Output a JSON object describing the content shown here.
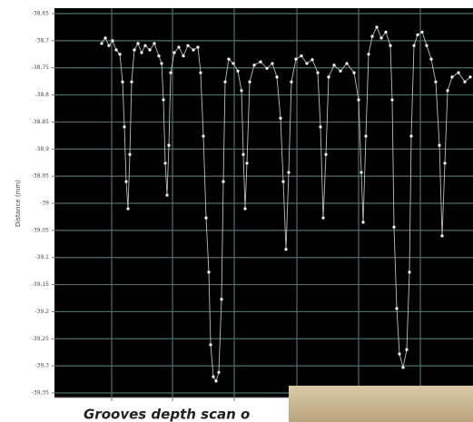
{
  "chart_data": {
    "type": "line",
    "title": "Grooves depth scan o",
    "y_label": "Distance (mm)",
    "xlim": [
      0,
      460
    ],
    "ylim": [
      -39.35,
      -38.65
    ],
    "yticks": [
      {
        "value": -38.65,
        "label": "-38,65"
      },
      {
        "value": -38.7,
        "label": "-38,7"
      },
      {
        "value": -38.75,
        "label": "-38,75"
      },
      {
        "value": -38.8,
        "label": "-38,8"
      },
      {
        "value": -38.85,
        "label": "-38,85"
      },
      {
        "value": -38.9,
        "label": "-38,9"
      },
      {
        "value": -38.95,
        "label": "-38,95"
      },
      {
        "value": -39,
        "label": "-39"
      },
      {
        "value": -39.05,
        "label": "-39,05"
      },
      {
        "value": -39.1,
        "label": "-39,1"
      },
      {
        "value": -39.15,
        "label": "-39,15"
      },
      {
        "value": -39.2,
        "label": "-39,2"
      },
      {
        "value": -39.25,
        "label": "-39,25"
      },
      {
        "value": -39.3,
        "label": "-39,3"
      },
      {
        "value": -39.35,
        "label": "-39,35"
      }
    ],
    "grid": true,
    "series": [
      {
        "color": "#ffffff",
        "x": [
          52,
          56,
          60,
          64,
          68,
          72,
          75,
          77,
          79,
          81,
          83,
          85,
          88,
          92,
          96,
          100,
          105,
          110,
          115,
          118,
          120,
          122,
          124,
          126,
          128,
          132,
          137,
          142,
          147,
          153,
          158,
          161,
          164,
          167,
          170,
          172,
          175,
          178,
          181,
          184,
          186,
          188,
          192,
          197,
          202,
          206,
          208,
          210,
          212,
          215,
          220,
          227,
          234,
          240,
          245,
          249,
          252,
          255,
          258,
          261,
          266,
          272,
          278,
          284,
          290,
          293,
          296,
          299,
          302,
          308,
          315,
          322,
          330,
          335,
          338,
          340,
          343,
          346,
          350,
          355,
          360,
          365,
          370,
          372,
          374,
          377,
          380,
          384,
          388,
          391,
          393,
          396,
          400,
          405,
          410,
          415,
          420,
          424,
          427,
          430,
          433,
          438,
          445,
          452,
          458
        ],
        "values": [
          -38.705,
          -38.695,
          -38.709,
          -38.7,
          -38.717,
          -38.725,
          -38.776,
          -38.859,
          -38.96,
          -39.01,
          -38.91,
          -38.776,
          -38.717,
          -38.705,
          -38.722,
          -38.709,
          -38.717,
          -38.705,
          -38.728,
          -38.742,
          -38.809,
          -38.926,
          -38.985,
          -38.893,
          -38.759,
          -38.722,
          -38.712,
          -38.728,
          -38.709,
          -38.717,
          -38.712,
          -38.759,
          -38.876,
          -39.027,
          -39.127,
          -39.261,
          -39.32,
          -39.328,
          -39.312,
          -39.177,
          -38.96,
          -38.776,
          -38.734,
          -38.742,
          -38.756,
          -38.792,
          -38.91,
          -39.01,
          -38.926,
          -38.776,
          -38.745,
          -38.739,
          -38.751,
          -38.742,
          -38.767,
          -38.843,
          -38.96,
          -39.085,
          -38.943,
          -38.776,
          -38.734,
          -38.728,
          -38.742,
          -38.735,
          -38.759,
          -38.859,
          -39.027,
          -38.91,
          -38.767,
          -38.745,
          -38.756,
          -38.742,
          -38.759,
          -38.809,
          -38.943,
          -39.035,
          -38.876,
          -38.725,
          -38.692,
          -38.675,
          -38.695,
          -38.684,
          -38.709,
          -38.809,
          -39.044,
          -39.194,
          -39.278,
          -39.303,
          -39.27,
          -39.127,
          -38.876,
          -38.709,
          -38.689,
          -38.684,
          -38.709,
          -38.734,
          -38.776,
          -38.893,
          -39.06,
          -38.926,
          -38.792,
          -38.767,
          -38.759,
          -38.776,
          -38.767
        ]
      }
    ]
  }
}
